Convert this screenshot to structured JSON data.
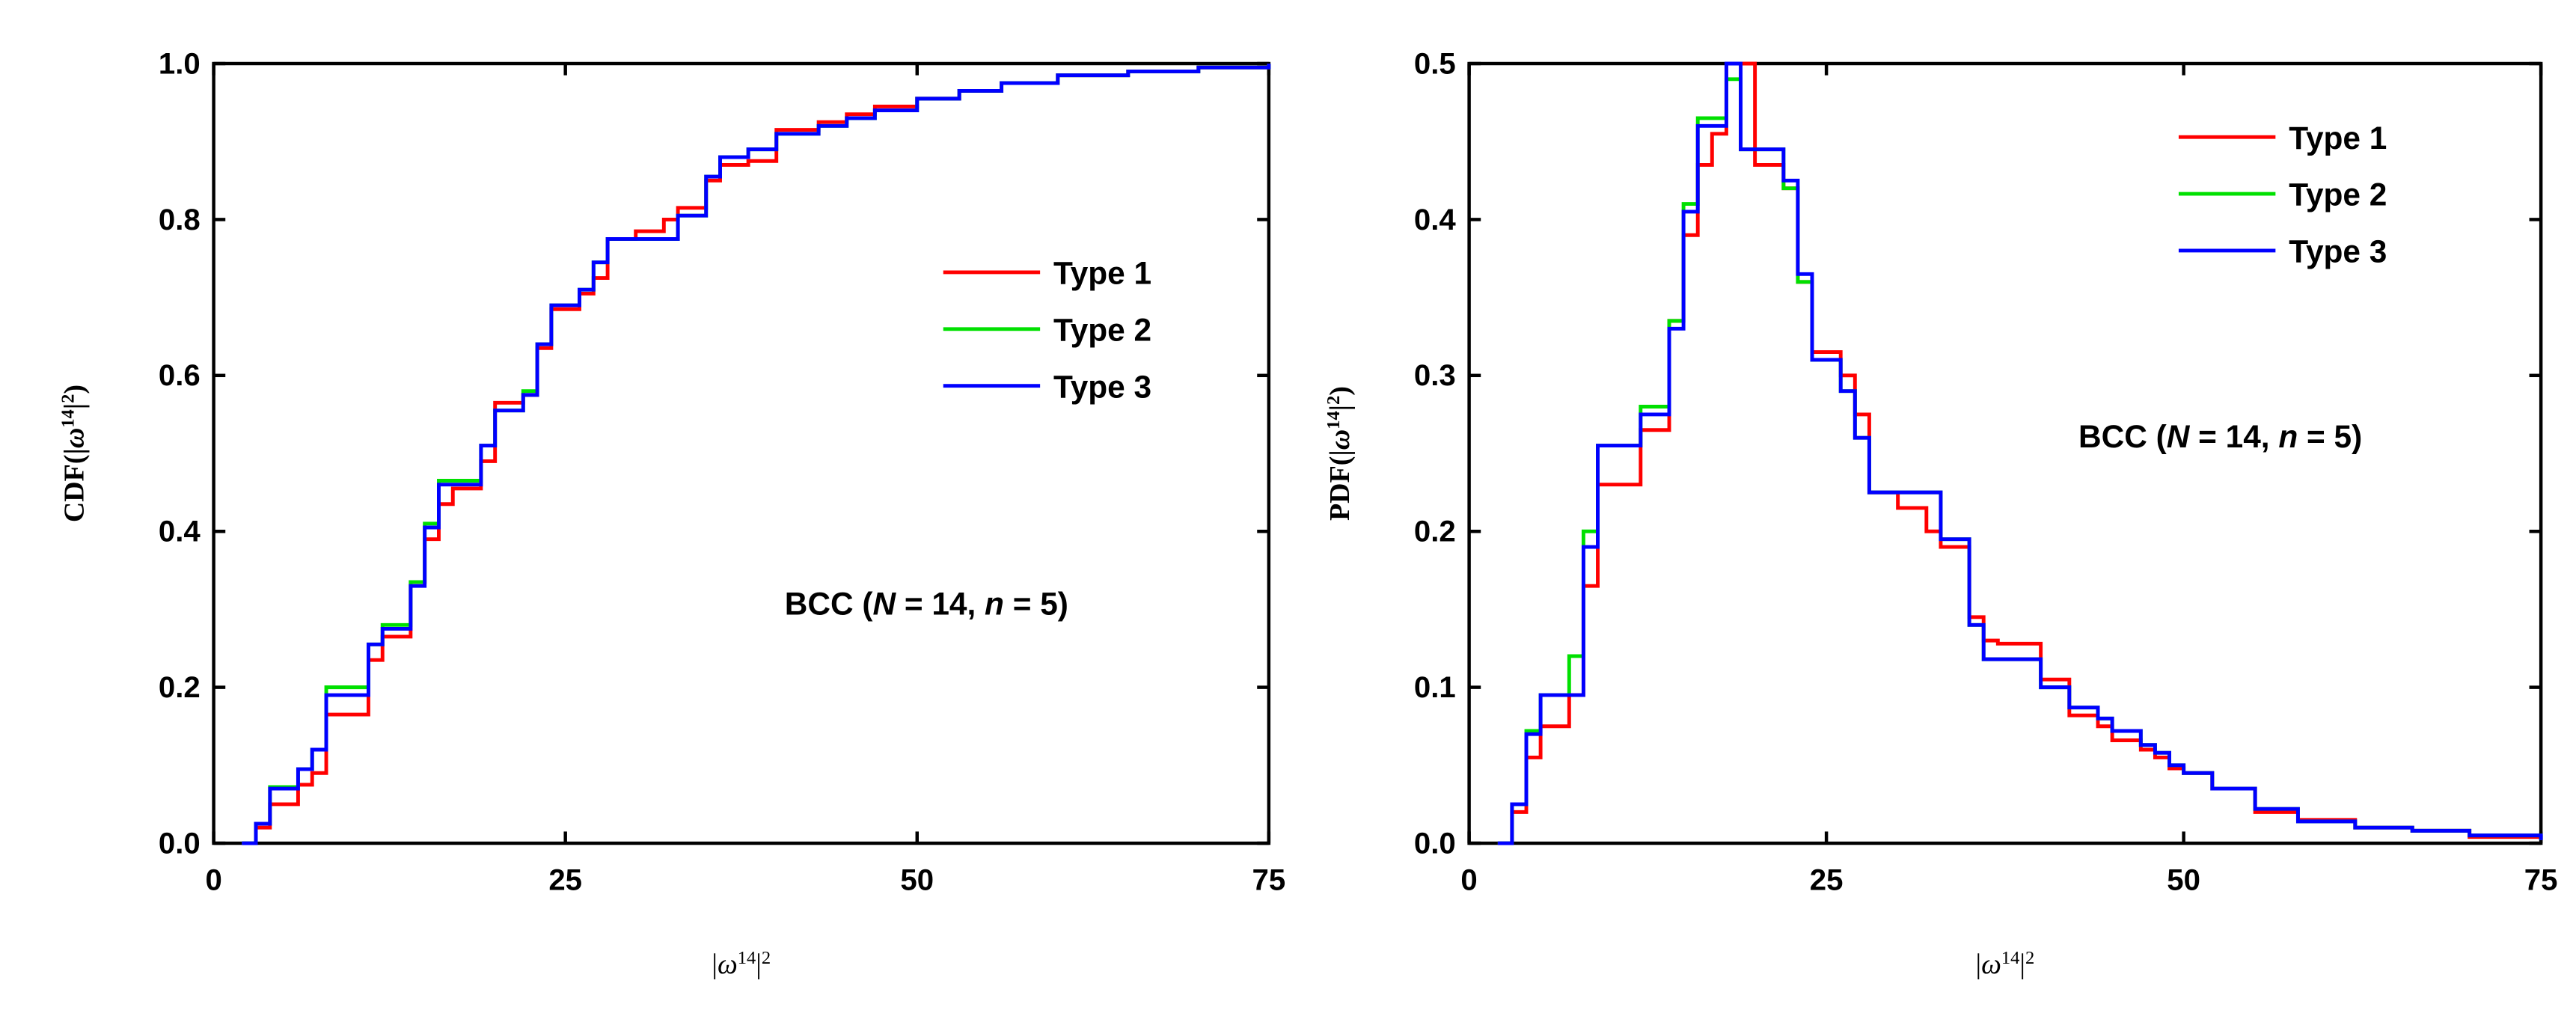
{
  "chart_data": [
    {
      "type": "step",
      "ylabel": [
        "CDF(|",
        "ω",
        "14",
        "|",
        "2",
        ")"
      ],
      "xlabel": [
        "|",
        "ω",
        "14",
        "|",
        "2"
      ],
      "annotation": [
        "BCC (",
        "N",
        " = 14, ",
        "n",
        " = 5)"
      ],
      "legend": "center right",
      "xlim": [
        0,
        75
      ],
      "xticks": [
        0,
        25,
        50,
        75
      ],
      "ylim": [
        0,
        1
      ],
      "yticks": [
        {
          "value": 0,
          "label": "0.0"
        },
        0.2,
        0.4,
        0.6,
        0.8,
        {
          "value": 1,
          "label": "1.0"
        }
      ],
      "x": [
        2,
        3,
        4,
        6,
        7,
        8,
        11,
        12,
        14,
        15,
        16,
        17,
        19,
        20,
        22,
        23,
        24,
        26,
        27,
        28,
        30,
        32,
        33,
        35,
        36,
        38,
        40,
        43,
        45,
        47,
        50,
        53,
        56,
        60,
        65,
        70,
        75
      ],
      "series": [
        {
          "name": "Type 1",
          "color": "#ff0000",
          "values": [
            0,
            0.02,
            0.05,
            0.075,
            0.09,
            0.165,
            0.235,
            0.265,
            0.335,
            0.39,
            0.435,
            0.455,
            0.49,
            0.565,
            0.575,
            0.635,
            0.685,
            0.705,
            0.725,
            0.775,
            0.785,
            0.8,
            0.815,
            0.85,
            0.87,
            0.875,
            0.915,
            0.925,
            0.935,
            0.945,
            0.955,
            0.965,
            0.975,
            0.985,
            0.99,
            0.995,
            1.0
          ]
        },
        {
          "name": "Type 2",
          "color": "#00e000",
          "values": [
            0,
            0.025,
            0.072,
            0.095,
            0.12,
            0.2,
            0.255,
            0.28,
            0.335,
            0.41,
            0.465,
            0.465,
            0.51,
            0.555,
            0.58,
            0.64,
            0.69,
            0.71,
            0.745,
            0.775,
            0.775,
            0.775,
            0.805,
            0.855,
            0.88,
            0.89,
            0.91,
            0.92,
            0.93,
            0.94,
            0.955,
            0.965,
            0.975,
            0.985,
            0.99,
            0.995,
            1.0
          ]
        },
        {
          "name": "Type 3",
          "color": "#0000ff",
          "values": [
            0,
            0.025,
            0.07,
            0.095,
            0.12,
            0.19,
            0.255,
            0.275,
            0.33,
            0.405,
            0.46,
            0.46,
            0.51,
            0.555,
            0.575,
            0.64,
            0.69,
            0.71,
            0.745,
            0.775,
            0.775,
            0.775,
            0.805,
            0.855,
            0.88,
            0.89,
            0.91,
            0.92,
            0.93,
            0.94,
            0.955,
            0.965,
            0.975,
            0.985,
            0.99,
            0.995,
            1.0
          ]
        }
      ]
    },
    {
      "type": "step",
      "ylabel": [
        "PDF(|",
        "ω",
        "14",
        "|",
        "2",
        ")"
      ],
      "xlabel": [
        "|",
        "ω",
        "14",
        "|",
        "2"
      ],
      "annotation": [
        "BCC (",
        "N",
        " = 14, ",
        "n",
        " = 5)"
      ],
      "legend": "upper right",
      "xlim": [
        0,
        75
      ],
      "xticks": [
        0,
        25,
        50,
        75
      ],
      "ylim": [
        0,
        0.5
      ],
      "yticks": [
        {
          "value": 0,
          "label": "0.0"
        },
        0.1,
        0.2,
        0.3,
        0.4,
        0.5
      ],
      "x": [
        2,
        3,
        4,
        5,
        7,
        8,
        9,
        11,
        12,
        14,
        15,
        16,
        17,
        18,
        19,
        20,
        21,
        22,
        23,
        24,
        26,
        27,
        28,
        30,
        32,
        33,
        35,
        36,
        37,
        40,
        42,
        44,
        45,
        47,
        48,
        49,
        50,
        52,
        55,
        58,
        62,
        66,
        70,
        75
      ],
      "series": [
        {
          "name": "Type 1",
          "color": "#ff0000",
          "values": [
            0,
            0.02,
            0.055,
            0.075,
            0.095,
            0.165,
            0.23,
            0.23,
            0.265,
            0.335,
            0.39,
            0.435,
            0.455,
            0.5,
            0.5,
            0.435,
            0.435,
            0.42,
            0.36,
            0.315,
            0.3,
            0.275,
            0.225,
            0.215,
            0.2,
            0.19,
            0.145,
            0.13,
            0.128,
            0.105,
            0.082,
            0.075,
            0.066,
            0.06,
            0.055,
            0.048,
            0.045,
            0.035,
            0.02,
            0.015,
            0.01,
            0.008,
            0.004,
            0.002
          ]
        },
        {
          "name": "Type 2",
          "color": "#00e000",
          "values": [
            0,
            0.025,
            0.072,
            0.095,
            0.12,
            0.2,
            0.255,
            0.255,
            0.28,
            0.335,
            0.41,
            0.465,
            0.465,
            0.49,
            0.445,
            0.445,
            0.445,
            0.42,
            0.36,
            0.31,
            0.29,
            0.26,
            0.225,
            0.225,
            0.225,
            0.195,
            0.14,
            0.118,
            0.118,
            0.1,
            0.087,
            0.08,
            0.072,
            0.063,
            0.058,
            0.05,
            0.045,
            0.035,
            0.022,
            0.014,
            0.01,
            0.008,
            0.005,
            0.002
          ]
        },
        {
          "name": "Type 3",
          "color": "#0000ff",
          "values": [
            0,
            0.025,
            0.07,
            0.095,
            0.095,
            0.19,
            0.255,
            0.255,
            0.275,
            0.33,
            0.405,
            0.46,
            0.46,
            0.5,
            0.445,
            0.445,
            0.445,
            0.425,
            0.365,
            0.31,
            0.29,
            0.26,
            0.225,
            0.225,
            0.225,
            0.195,
            0.14,
            0.118,
            0.118,
            0.1,
            0.087,
            0.08,
            0.072,
            0.063,
            0.058,
            0.05,
            0.045,
            0.035,
            0.022,
            0.014,
            0.01,
            0.008,
            0.005,
            0.002
          ]
        }
      ]
    }
  ]
}
